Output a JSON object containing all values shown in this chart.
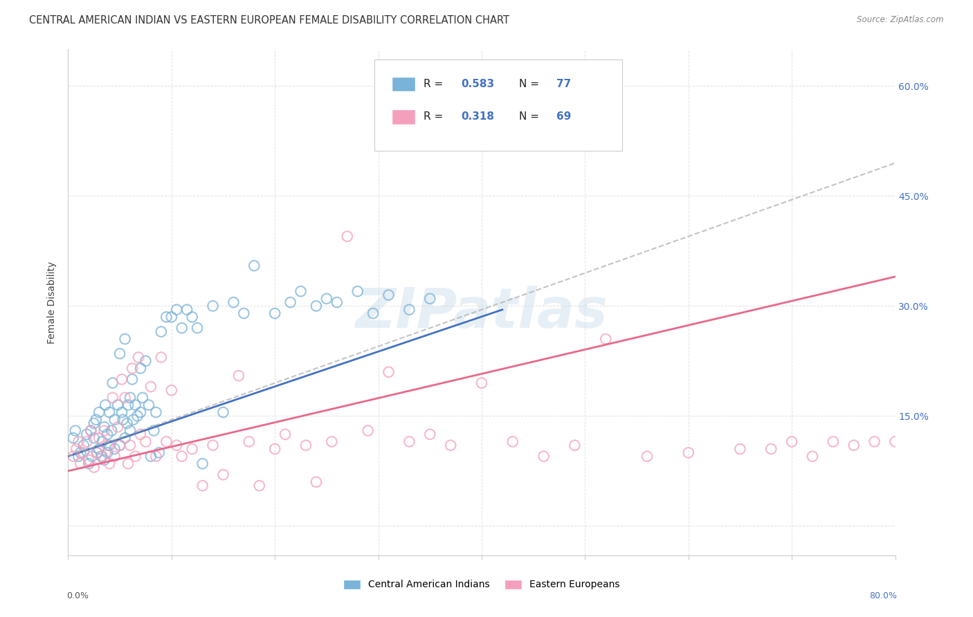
{
  "title": "CENTRAL AMERICAN INDIAN VS EASTERN EUROPEAN FEMALE DISABILITY CORRELATION CHART",
  "source": "Source: ZipAtlas.com",
  "ylabel": "Female Disability",
  "xlim": [
    0.0,
    0.8
  ],
  "ylim": [
    -0.04,
    0.65
  ],
  "yticks": [
    0.0,
    0.15,
    0.3,
    0.45,
    0.6
  ],
  "ytick_labels_right": [
    "",
    "15.0%",
    "30.0%",
    "45.0%",
    "60.0%"
  ],
  "xticks": [
    0.0,
    0.1,
    0.2,
    0.3,
    0.4,
    0.5,
    0.6,
    0.7,
    0.8
  ],
  "color_blue": "#7ab3d9",
  "color_pink": "#f4a0bc",
  "color_blue_line": "#4472c4",
  "color_pink_line": "#e8688a",
  "color_blue_text": "#4472c4",
  "color_gray_dashed": "#aaaaaa",
  "watermark_color": "#c5d8ea",
  "background_color": "#ffffff",
  "grid_color": "#cccccc",
  "blue_scatter_x": [
    0.005,
    0.007,
    0.01,
    0.012,
    0.015,
    0.018,
    0.02,
    0.022,
    0.023,
    0.025,
    0.025,
    0.027,
    0.028,
    0.03,
    0.03,
    0.032,
    0.033,
    0.035,
    0.035,
    0.036,
    0.038,
    0.038,
    0.04,
    0.04,
    0.042,
    0.043,
    0.045,
    0.045,
    0.048,
    0.05,
    0.05,
    0.052,
    0.053,
    0.055,
    0.055,
    0.057,
    0.058,
    0.06,
    0.06,
    0.062,
    0.063,
    0.065,
    0.067,
    0.07,
    0.07,
    0.072,
    0.075,
    0.078,
    0.08,
    0.083,
    0.085,
    0.088,
    0.09,
    0.095,
    0.1,
    0.105,
    0.11,
    0.115,
    0.12,
    0.125,
    0.13,
    0.14,
    0.15,
    0.16,
    0.17,
    0.18,
    0.2,
    0.215,
    0.225,
    0.24,
    0.25,
    0.26,
    0.28,
    0.295,
    0.31,
    0.33,
    0.35
  ],
  "blue_scatter_y": [
    0.12,
    0.13,
    0.095,
    0.1,
    0.11,
    0.125,
    0.085,
    0.13,
    0.095,
    0.14,
    0.12,
    0.145,
    0.1,
    0.155,
    0.105,
    0.095,
    0.115,
    0.09,
    0.135,
    0.165,
    0.1,
    0.125,
    0.155,
    0.11,
    0.13,
    0.195,
    0.145,
    0.105,
    0.165,
    0.11,
    0.235,
    0.155,
    0.145,
    0.12,
    0.255,
    0.14,
    0.165,
    0.13,
    0.175,
    0.2,
    0.145,
    0.165,
    0.15,
    0.155,
    0.215,
    0.175,
    0.225,
    0.165,
    0.095,
    0.13,
    0.155,
    0.1,
    0.265,
    0.285,
    0.285,
    0.295,
    0.27,
    0.295,
    0.285,
    0.27,
    0.085,
    0.3,
    0.155,
    0.305,
    0.29,
    0.355,
    0.29,
    0.305,
    0.32,
    0.3,
    0.31,
    0.305,
    0.32,
    0.29,
    0.315,
    0.295,
    0.31
  ],
  "pink_scatter_x": [
    0.005,
    0.008,
    0.01,
    0.012,
    0.015,
    0.018,
    0.02,
    0.022,
    0.025,
    0.028,
    0.03,
    0.033,
    0.035,
    0.038,
    0.04,
    0.043,
    0.045,
    0.048,
    0.05,
    0.052,
    0.055,
    0.058,
    0.06,
    0.062,
    0.065,
    0.068,
    0.07,
    0.075,
    0.08,
    0.085,
    0.09,
    0.095,
    0.1,
    0.105,
    0.11,
    0.12,
    0.13,
    0.14,
    0.15,
    0.165,
    0.175,
    0.185,
    0.2,
    0.21,
    0.23,
    0.24,
    0.255,
    0.27,
    0.29,
    0.31,
    0.33,
    0.35,
    0.37,
    0.4,
    0.43,
    0.46,
    0.49,
    0.52,
    0.56,
    0.6,
    0.65,
    0.68,
    0.7,
    0.72,
    0.74,
    0.76,
    0.78,
    0.8,
    0.82
  ],
  "pink_scatter_y": [
    0.095,
    0.105,
    0.115,
    0.085,
    0.1,
    0.115,
    0.09,
    0.13,
    0.08,
    0.1,
    0.12,
    0.095,
    0.13,
    0.11,
    0.085,
    0.175,
    0.095,
    0.135,
    0.11,
    0.2,
    0.175,
    0.085,
    0.11,
    0.215,
    0.095,
    0.23,
    0.125,
    0.115,
    0.19,
    0.095,
    0.23,
    0.115,
    0.185,
    0.11,
    0.095,
    0.105,
    0.055,
    0.11,
    0.07,
    0.205,
    0.115,
    0.055,
    0.105,
    0.125,
    0.11,
    0.06,
    0.115,
    0.395,
    0.13,
    0.21,
    0.115,
    0.125,
    0.11,
    0.195,
    0.115,
    0.095,
    0.11,
    0.255,
    0.095,
    0.1,
    0.105,
    0.105,
    0.115,
    0.095,
    0.115,
    0.11,
    0.115,
    0.115,
    0.115
  ],
  "blue_solid_line_x": [
    0.0,
    0.42
  ],
  "blue_solid_line_y": [
    0.095,
    0.295
  ],
  "blue_dashed_line_x": [
    0.0,
    0.8
  ],
  "blue_dashed_line_y": [
    0.095,
    0.495
  ],
  "pink_solid_line_x": [
    0.0,
    0.8
  ],
  "pink_solid_line_y": [
    0.075,
    0.34
  ],
  "legend_r1": "0.583",
  "legend_n1": "77",
  "legend_r2": "0.318",
  "legend_n2": "69",
  "title_fontsize": 10.5,
  "tick_fontsize": 9,
  "label_fontsize": 9
}
